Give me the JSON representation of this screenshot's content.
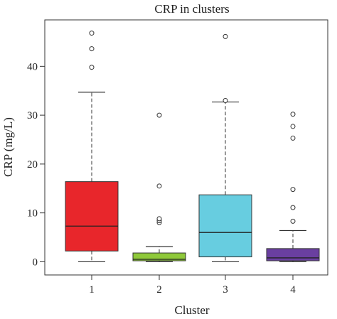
{
  "chart_data": {
    "type": "box",
    "title": "CRP in clusters",
    "xlabel": "Cluster",
    "ylabel": "CRP (mg/L)",
    "ylim": [
      -2.7,
      49.5
    ],
    "yticks": [
      0,
      10,
      20,
      30,
      40
    ],
    "categories": [
      "1",
      "2",
      "3",
      "4"
    ],
    "boxes": [
      {
        "category": "1",
        "color": "#e8262b",
        "whisker_low": 0.0,
        "q1": 2.2,
        "median": 7.3,
        "q3": 16.4,
        "whisker_high": 34.7,
        "outliers": [
          39.8,
          43.6,
          46.8
        ]
      },
      {
        "category": "2",
        "color": "#8fc93a",
        "whisker_low": 0.0,
        "q1": 0.2,
        "median": 0.5,
        "q3": 1.8,
        "whisker_high": 3.1,
        "outliers": [
          8.0,
          8.4,
          8.8,
          15.5,
          30.0
        ]
      },
      {
        "category": "3",
        "color": "#67cde0",
        "whisker_low": 0.0,
        "q1": 1.0,
        "median": 6.0,
        "q3": 13.7,
        "whisker_high": 32.7,
        "outliers": [
          33.0,
          46.1
        ]
      },
      {
        "category": "4",
        "color": "#6a3fa0",
        "whisker_low": 0.0,
        "q1": 0.2,
        "median": 0.8,
        "q3": 2.7,
        "whisker_high": 6.4,
        "outliers": [
          8.3,
          11.1,
          14.8,
          25.3,
          27.7,
          30.2
        ]
      }
    ],
    "grid": false,
    "legend": "none"
  }
}
